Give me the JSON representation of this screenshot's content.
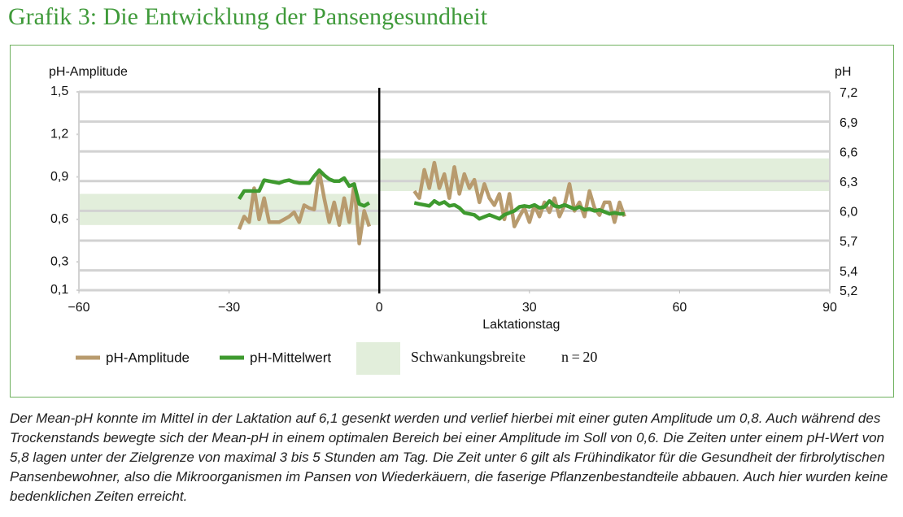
{
  "chart_data": {
    "type": "line",
    "title": "Grafik 3: Die Entwicklung der Pansengesundheit",
    "y_label": "pH-Amplitude",
    "y2_label": "pH",
    "x_label": "Laktationstag",
    "xlim": [
      -60,
      90
    ],
    "xticks": [
      {
        "value": -60,
        "label": "−60"
      },
      {
        "value": -30,
        "label": "−30"
      },
      0,
      30,
      60,
      90
    ],
    "ylim": [
      0.1,
      1.5
    ],
    "yticks": [
      {
        "value": 1.5,
        "label": "1,5"
      },
      {
        "value": 1.2,
        "label": "1,2"
      },
      {
        "value": 0.9,
        "label": "0,9"
      },
      {
        "value": 0.6,
        "label": "0,6"
      },
      {
        "value": 0.3,
        "label": "0,3"
      },
      {
        "value": 0.1,
        "label": "0,1"
      }
    ],
    "y2lim": [
      5.2,
      7.2
    ],
    "y2ticks": [
      {
        "value": 7.2,
        "label": "7,2"
      },
      {
        "value": 6.9,
        "label": "6,9"
      },
      {
        "value": 6.6,
        "label": "6,6"
      },
      {
        "value": 6.3,
        "label": "6,3"
      },
      {
        "value": 6.0,
        "label": "6,0"
      },
      {
        "value": 5.7,
        "label": "5,7"
      },
      {
        "value": 5.4,
        "label": "5,4"
      },
      {
        "value": 5.2,
        "label": "5,2"
      }
    ],
    "grid": true,
    "vline": 0,
    "x": [
      -28,
      -27,
      -26,
      -25,
      -24,
      -23,
      -22,
      -21,
      -20,
      -19,
      -18,
      -17,
      -16,
      -15,
      -14,
      -13,
      -12,
      -11,
      -10,
      -9,
      -8,
      -7,
      -6,
      -5,
      -4,
      -3,
      -2,
      7,
      8,
      9,
      10,
      11,
      12,
      13,
      14,
      15,
      16,
      17,
      18,
      19,
      20,
      21,
      22,
      23,
      24,
      25,
      26,
      27,
      28,
      29,
      30,
      31,
      32,
      33,
      34,
      35,
      36,
      37,
      38,
      39,
      40,
      41,
      42,
      43,
      44,
      45,
      46,
      47,
      48,
      49
    ],
    "series": [
      {
        "name": "pH-Amplitude",
        "color": "#b89b6e",
        "axis": "y",
        "values": [
          0.53,
          0.62,
          0.58,
          0.82,
          0.6,
          0.75,
          0.58,
          0.58,
          0.58,
          0.6,
          0.62,
          0.65,
          0.58,
          0.7,
          0.68,
          0.67,
          0.94,
          0.75,
          0.58,
          0.72,
          0.56,
          0.75,
          0.58,
          0.85,
          0.43,
          0.66,
          0.55,
          0.8,
          0.75,
          0.95,
          0.82,
          1.0,
          0.82,
          0.92,
          0.75,
          0.97,
          0.78,
          0.92,
          0.82,
          0.88,
          0.72,
          0.85,
          0.75,
          0.7,
          0.78,
          0.6,
          0.78,
          0.55,
          0.62,
          0.68,
          0.58,
          0.7,
          0.62,
          0.72,
          0.65,
          0.75,
          0.62,
          0.7,
          0.85,
          0.66,
          0.72,
          0.62,
          0.8,
          0.68,
          0.63,
          0.72,
          0.72,
          0.58,
          0.72,
          0.62
        ]
      },
      {
        "name": "pH-Mittelwert",
        "color": "#3e9a2f",
        "axis": "y2",
        "values": [
          6.12,
          6.2,
          6.2,
          6.2,
          6.2,
          6.31,
          6.3,
          6.29,
          6.28,
          6.3,
          6.31,
          6.29,
          6.28,
          6.28,
          6.28,
          6.35,
          6.41,
          6.36,
          6.32,
          6.3,
          6.3,
          6.33,
          6.25,
          6.27,
          6.07,
          6.05,
          6.08,
          6.08,
          6.07,
          6.06,
          6.05,
          6.1,
          6.07,
          6.09,
          6.05,
          6.06,
          6.03,
          5.98,
          5.97,
          5.96,
          5.92,
          5.94,
          5.96,
          5.94,
          5.92,
          5.96,
          5.98,
          6.0,
          6.04,
          6.05,
          6.04,
          6.06,
          6.03,
          6.04,
          6.1,
          6.05,
          6.04,
          6.06,
          6.04,
          6.02,
          6.04,
          6.01,
          6.02,
          6.0,
          6.01,
          5.99,
          5.97,
          5.98,
          5.97,
          5.97
        ]
      }
    ],
    "band_series": {
      "name": "Schwankungsbreite",
      "color": "#e2eedb",
      "bands": [
        {
          "x": [
            -60,
            0
          ],
          "y": [
            0.56,
            0.78
          ]
        },
        {
          "x": [
            0,
            90
          ],
          "y": [
            0.8,
            1.03
          ]
        }
      ]
    },
    "annotation": "n = 20",
    "caption": "Der Mean-pH konnte im Mittel in der Laktation auf 6,1 gesenkt werden und verlief hierbei mit einer guten Amplitude um 0,8. Auch während des Trockenstands bewegte sich der Mean-pH in einem optimalen Bereich bei einer Amplitude im Soll von 0,6. Die Zeiten unter einem pH-Wert von 5,8 lagen unter der Zielgrenze von maximal 3 bis 5 Stunden am Tag. Die Zeit unter 6 gilt als Frühindikator für die Gesundheit der firbrolytischen Pansenbewohner, also die Mikroorganismen im Pansen von Wiederkäuern, die faserige Pflanzenbestandteile abbauen. Auch hier wurden keine bedenklichen Zeiten erreicht."
  }
}
